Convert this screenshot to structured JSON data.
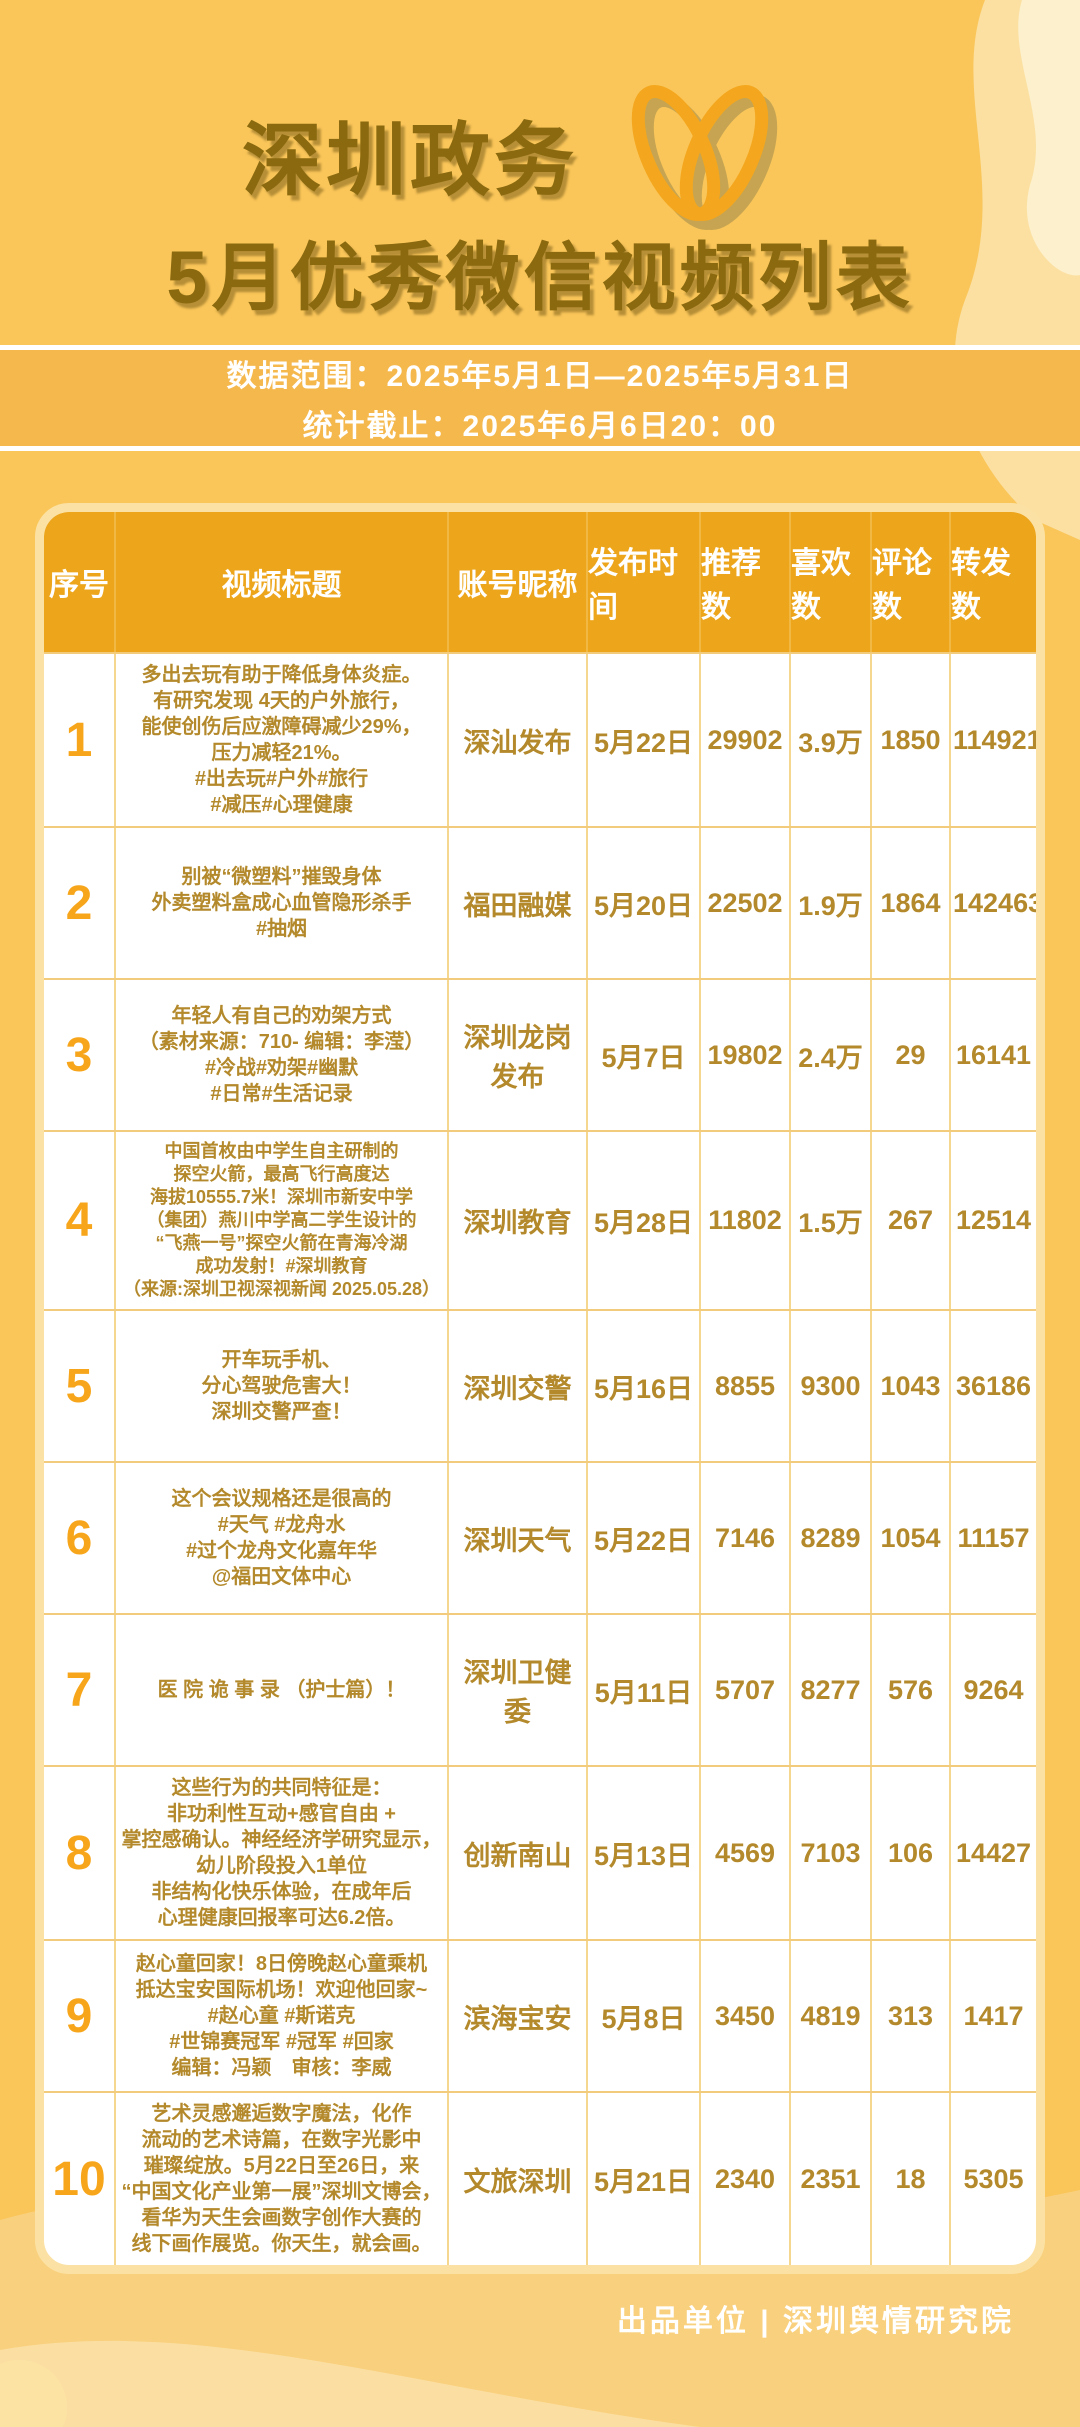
{
  "page": {
    "title_line1": "深圳政务",
    "title_line2": "5月优秀微信视频列表",
    "footer_credit": "出品单位 | 深圳舆情研究院"
  },
  "banner": {
    "line1": "数据范围：2025年5月1日—2025年5月31日",
    "line2": "统计截止：2025年6月6日20：00"
  },
  "icons": {
    "logo": "wechat-channels-icon"
  },
  "colors": {
    "page_background": "#FAC65A",
    "banner_background": "#F5B84D",
    "header_background": "#EDA61C",
    "card_border": "#FBE2A4",
    "body_text": "#B3892B",
    "serial_number": "#F7A61B",
    "title_text": "#8A690F",
    "blob_light": "#FBE0A2",
    "blob_lighter": "#FDF0CC",
    "bottom_wave": "#F9D07D"
  },
  "table": {
    "headers": [
      "序号",
      "视频标题",
      "账号昵称",
      "发布时间",
      "推荐数",
      "喜欢数",
      "评论数",
      "转发数"
    ],
    "rows": [
      {
        "no": "1",
        "title_lines": [
          "多出去玩有助于降低身体炎症。",
          "有研究发现 4天的户外旅行，",
          "能使创伤后应激障碍减少29%，",
          "压力减轻21%。",
          "#出去玩#户外#旅行",
          "#减压#心理健康"
        ],
        "account": "深汕发布",
        "date": "5月22日",
        "recommends": "29902",
        "likes": "3.9万",
        "comments": "1850",
        "shares": "114921"
      },
      {
        "no": "2",
        "title_lines": [
          "别被“微塑料”摧毁身体",
          "外卖塑料盒成心血管隐形杀手",
          "#抽烟"
        ],
        "account": "福田融媒",
        "date": "5月20日",
        "recommends": "22502",
        "likes": "1.9万",
        "comments": "1864",
        "shares": "142463"
      },
      {
        "no": "3",
        "title_lines": [
          "年轻人有自己的劝架方式",
          "（素材来源：710- 编辑：李滢）",
          "#冷战#劝架#幽默",
          "#日常#生活记录"
        ],
        "account": "深圳龙岗发布",
        "date": "5月7日",
        "recommends": "19802",
        "likes": "2.4万",
        "comments": "29",
        "shares": "16141"
      },
      {
        "no": "4",
        "title_lines": [
          "中国首枚由中学生自主研制的",
          "探空火箭，最高飞行高度达",
          "海拔10555.7米！深圳市新安中学",
          "（集团）燕川中学高二学生设计的",
          "“飞燕一号”探空火箭在青海冷湖",
          "成功发射！#深圳教育",
          "（来源:深圳卫视深视新闻 2025.05.28）"
        ],
        "account": "深圳教育",
        "date": "5月28日",
        "recommends": "11802",
        "likes": "1.5万",
        "comments": "267",
        "shares": "12514"
      },
      {
        "no": "5",
        "title_lines": [
          "开车玩手机、",
          "分心驾驶危害大！",
          "深圳交警严查！"
        ],
        "account": "深圳交警",
        "date": "5月16日",
        "recommends": "8855",
        "likes": "9300",
        "comments": "1043",
        "shares": "36186"
      },
      {
        "no": "6",
        "title_lines": [
          "这个会议规格还是很高的",
          "#天气 #龙舟水",
          "#过个龙舟文化嘉年华",
          "@福田文体中心"
        ],
        "account": "深圳天气",
        "date": "5月22日",
        "recommends": "7146",
        "likes": "8289",
        "comments": "1054",
        "shares": "11157"
      },
      {
        "no": "7",
        "title_lines": [
          "医 院 诡 事 录 （护士篇）！"
        ],
        "account": "深圳卫健委",
        "date": "5月11日",
        "recommends": "5707",
        "likes": "8277",
        "comments": "576",
        "shares": "9264"
      },
      {
        "no": "8",
        "title_lines": [
          "这些行为的共同特征是：",
          "非功利性互动+感官自由 +",
          "掌控感确认。神经经济学研究显示，",
          "幼儿阶段投入1单位",
          "非结构化快乐体验，在成年后",
          "心理健康回报率可达6.2倍。"
        ],
        "account": "创新南山",
        "date": "5月13日",
        "recommends": "4569",
        "likes": "7103",
        "comments": "106",
        "shares": "14427"
      },
      {
        "no": "9",
        "title_lines": [
          "赵心童回家！8日傍晚赵心童乘机",
          "抵达宝安国际机场！欢迎他回家~",
          "#赵心童 #斯诺克",
          "#世锦赛冠军 #冠军 #回家",
          "编辑：冯颖　审核：李威"
        ],
        "account": "滨海宝安",
        "date": "5月8日",
        "recommends": "3450",
        "likes": "4819",
        "comments": "313",
        "shares": "1417"
      },
      {
        "no": "10",
        "title_lines": [
          "艺术灵感邂逅数字魔法，化作",
          "流动的艺术诗篇，在数字光影中",
          "璀璨绽放。5月22日至26日，来",
          "“中国文化产业第一展”深圳文博会，",
          "看华为天生会画数字创作大赛的",
          "线下画作展览。你天生，就会画。"
        ],
        "account": "文旅深圳",
        "date": "5月21日",
        "recommends": "2340",
        "likes": "2351",
        "comments": "18",
        "shares": "5305"
      }
    ]
  }
}
